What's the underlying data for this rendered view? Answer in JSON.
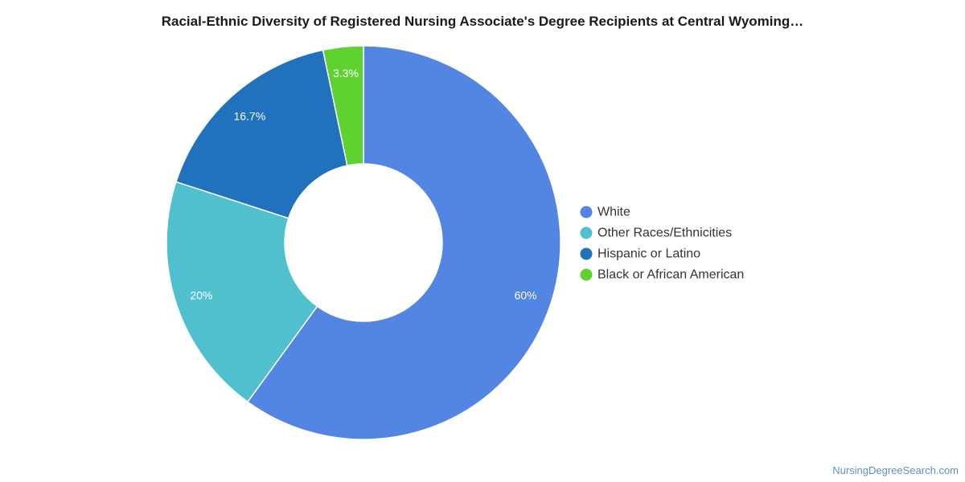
{
  "chart_data": {
    "type": "pie",
    "style": "donut",
    "title": "Racial-Ethnic Diversity of Registered Nursing Associate's Degree Recipients at Central Wyoming…",
    "slices": [
      {
        "name": "White",
        "value": 60,
        "label": "60%",
        "color": "#5385e2"
      },
      {
        "name": "Other Races/Ethnicities",
        "value": 20,
        "label": "20%",
        "color": "#50c0ce"
      },
      {
        "name": "Hispanic or Latino",
        "value": 16.7,
        "label": "16.7%",
        "color": "#1f72bb"
      },
      {
        "name": "Black or African American",
        "value": 3.3,
        "label": "3.3%",
        "color": "#5fd130"
      }
    ],
    "legend_position": "right"
  },
  "footer": {
    "source": "NursingDegreeSearch.com"
  }
}
